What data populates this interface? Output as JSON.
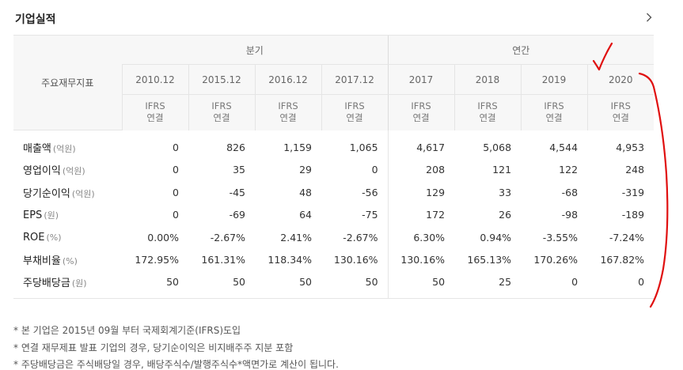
{
  "header": {
    "title": "기업실적",
    "more_icon": "chevron-right-icon"
  },
  "table": {
    "label_header": "주요재무지표",
    "groups": [
      {
        "label": "분기"
      },
      {
        "label": "연간"
      }
    ],
    "columns": [
      {
        "year": "2010.12",
        "standard": "IFRS",
        "basis": "연결"
      },
      {
        "year": "2015.12",
        "standard": "IFRS",
        "basis": "연결"
      },
      {
        "year": "2016.12",
        "standard": "IFRS",
        "basis": "연결"
      },
      {
        "year": "2017.12",
        "standard": "IFRS",
        "basis": "연결"
      },
      {
        "year": "2017",
        "standard": "IFRS",
        "basis": "연결"
      },
      {
        "year": "2018",
        "standard": "IFRS",
        "basis": "연결"
      },
      {
        "year": "2019",
        "standard": "IFRS",
        "basis": "연결"
      },
      {
        "year": "2020",
        "standard": "IFRS",
        "basis": "연결"
      }
    ],
    "rows": [
      {
        "label": "매출액",
        "unit": "(억원)",
        "values": [
          "0",
          "826",
          "1,159",
          "1,065",
          "4,617",
          "5,068",
          "4,544",
          "4,953"
        ]
      },
      {
        "label": "영업이익",
        "unit": "(억원)",
        "values": [
          "0",
          "35",
          "29",
          "0",
          "208",
          "121",
          "122",
          "248"
        ]
      },
      {
        "label": "당기순이익",
        "unit": "(억원)",
        "values": [
          "0",
          "-45",
          "48",
          "-56",
          "129",
          "33",
          "-68",
          "-319"
        ]
      },
      {
        "label": "EPS",
        "unit": "(원)",
        "values": [
          "0",
          "-69",
          "64",
          "-75",
          "172",
          "26",
          "-98",
          "-189"
        ]
      },
      {
        "label": "ROE",
        "unit": "(%)",
        "values": [
          "0.00%",
          "-2.67%",
          "2.41%",
          "-2.67%",
          "6.30%",
          "0.94%",
          "-3.55%",
          "-7.24%"
        ]
      },
      {
        "label": "부채비율",
        "unit": "(%)",
        "values": [
          "172.95%",
          "161.31%",
          "118.34%",
          "130.16%",
          "130.16%",
          "165.13%",
          "170.26%",
          "167.82%"
        ]
      },
      {
        "label": "주당배당금",
        "unit": "(원)",
        "values": [
          "50",
          "50",
          "50",
          "50",
          "50",
          "25",
          "0",
          "0"
        ]
      }
    ]
  },
  "notes": [
    "* 본 기업은 2015년 09월 부터 국제회계기준(IFRS)도입",
    "* 연결 재무제표 발표 기업의 경우, 당기순이익은 비지배주주 지분 포함",
    "* 주당배당금은 주식배당일 경우, 배당주식수/발행주식수*액면가로 계산이 됩니다."
  ],
  "annotation": {
    "color": "#e01010",
    "marks": [
      "checkmark",
      "bracket-curve"
    ]
  }
}
